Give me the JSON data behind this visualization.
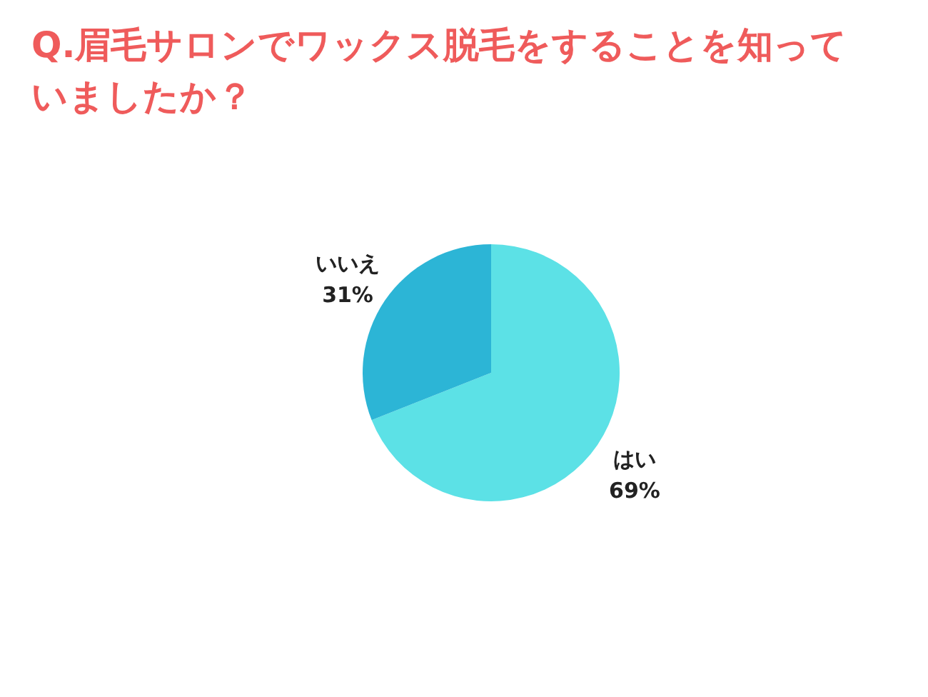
{
  "chart_data": {
    "type": "pie",
    "title": "Q.眉毛サロンでワックス脱毛をすることを知っていましたか？",
    "categories": [
      "はい",
      "いいえ"
    ],
    "values": [
      69,
      31
    ],
    "colors": [
      "#5ce1e6",
      "#2cb5d6"
    ],
    "value_labels": [
      "69%",
      "31%"
    ]
  }
}
